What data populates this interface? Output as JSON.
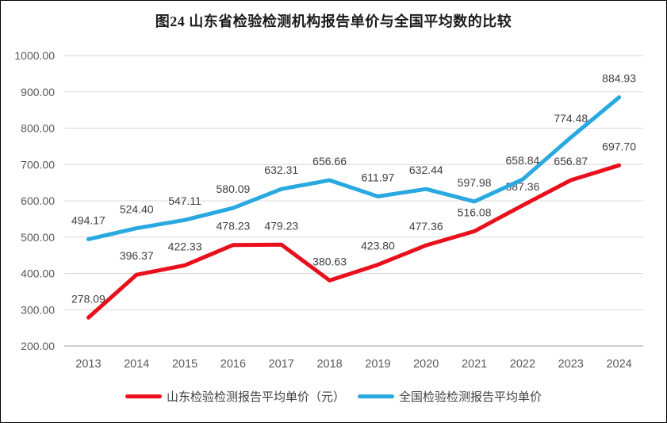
{
  "title": "图24  山东省检验检测机构报告单价与全国平均数的比较",
  "colors": {
    "shandong_red": "#e8101c",
    "national_blue": "#29a9e0",
    "gridline": "#d9d9d9",
    "axis_line": "#bfbfbf",
    "tick_label": "#595959",
    "data_label": "#404040"
  },
  "chart_data": {
    "type": "line",
    "title": "图24  山东省检验检测机构报告单价与全国平均数的比较",
    "categories": [
      "2013",
      "2014",
      "2015",
      "2016",
      "2017",
      "2018",
      "2019",
      "2020",
      "2021",
      "2022",
      "2023",
      "2024"
    ],
    "series": [
      {
        "name": "山东检验检测报告平均单价（元）",
        "color_key": "shandong_red",
        "values": [
          278.09,
          396.37,
          422.33,
          478.23,
          479.23,
          380.63,
          423.8,
          477.36,
          516.08,
          587.36,
          656.87,
          697.7
        ]
      },
      {
        "name": "全国检验检测报告平均单价",
        "color_key": "national_blue",
        "values": [
          494.17,
          524.4,
          547.11,
          580.09,
          632.31,
          656.66,
          611.97,
          632.44,
          597.98,
          658.84,
          774.48,
          884.93
        ]
      }
    ],
    "xlabel": "",
    "ylabel": "",
    "ylim": [
      200,
      1000
    ],
    "ytick_step": 100,
    "ytick_format_decimals": 2,
    "grid": true,
    "value_labels": true,
    "legend_position": "bottom"
  }
}
